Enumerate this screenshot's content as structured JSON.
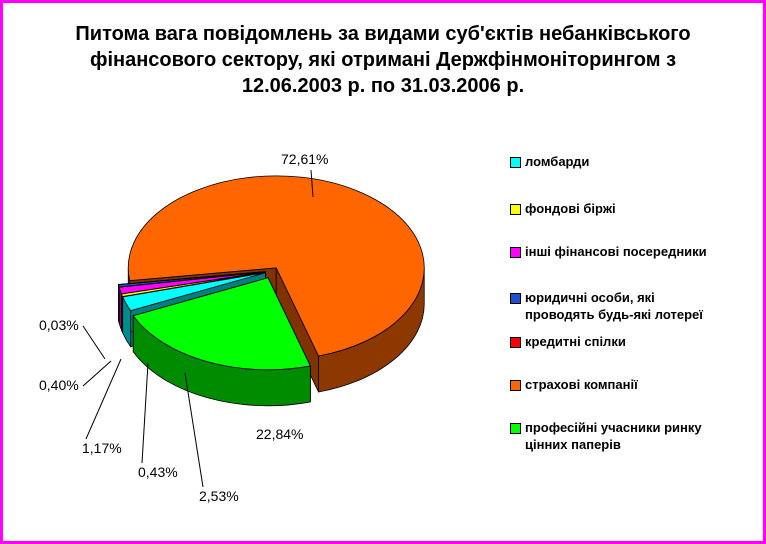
{
  "chart_data": {
    "type": "pie",
    "title": "Питома вага повідомлень за видами суб'єктів небанківського фінансового сектору, які отримані Держфінмоніторингом з 12.06.2003 р. по 31.03.2006 р.",
    "title_lines": [
      "Питома вага повідомлень за видами суб'єктів небанківського",
      "фінансового сектору, які отримані Держфінмоніторингом з",
      "12.06.2003 р. по 31.03.2006 р."
    ],
    "slices": [
      {
        "name": "ломбарди",
        "legend_lines": [
          "ломбарди"
        ],
        "value": 2.53,
        "label": "2,53%",
        "color": "#00ffff"
      },
      {
        "name": "фондові біржі",
        "legend_lines": [
          "фондові біржі"
        ],
        "value": 0.43,
        "label": "0,43%",
        "color": "#ffff00"
      },
      {
        "name": "інші фінансові посередники",
        "legend_lines": [
          "інші фінансові посередники"
        ],
        "value": 1.17,
        "label": "1,17%",
        "color": "#ff00ff"
      },
      {
        "name": "юридичні особи, які проводять будь-які лотереї",
        "legend_lines": [
          "юридичні особи, які",
          "проводять будь-які лотереї"
        ],
        "value": 0.4,
        "label": "0,40%",
        "color": "#1f4fd0"
      },
      {
        "name": "кредитні спілки",
        "legend_lines": [
          "кредитні спілки"
        ],
        "value": 0.03,
        "label": "0,03%",
        "color": "#ff0000"
      },
      {
        "name": "страхові компанії",
        "legend_lines": [
          "страхові компанії"
        ],
        "value": 72.61,
        "label": "72,61%",
        "color": "#ff6600"
      },
      {
        "name": "професійні учасники ринку цінних паперів",
        "legend_lines": [
          "професійні учасники ринку",
          "цінних паперів"
        ],
        "value": 22.84,
        "label": "22,84%",
        "color": "#00ff00"
      }
    ],
    "legend_position": "right",
    "style": "3d-exploded"
  },
  "colors": {
    "frame_border": "#ff00ff",
    "background": "#ffffff"
  }
}
